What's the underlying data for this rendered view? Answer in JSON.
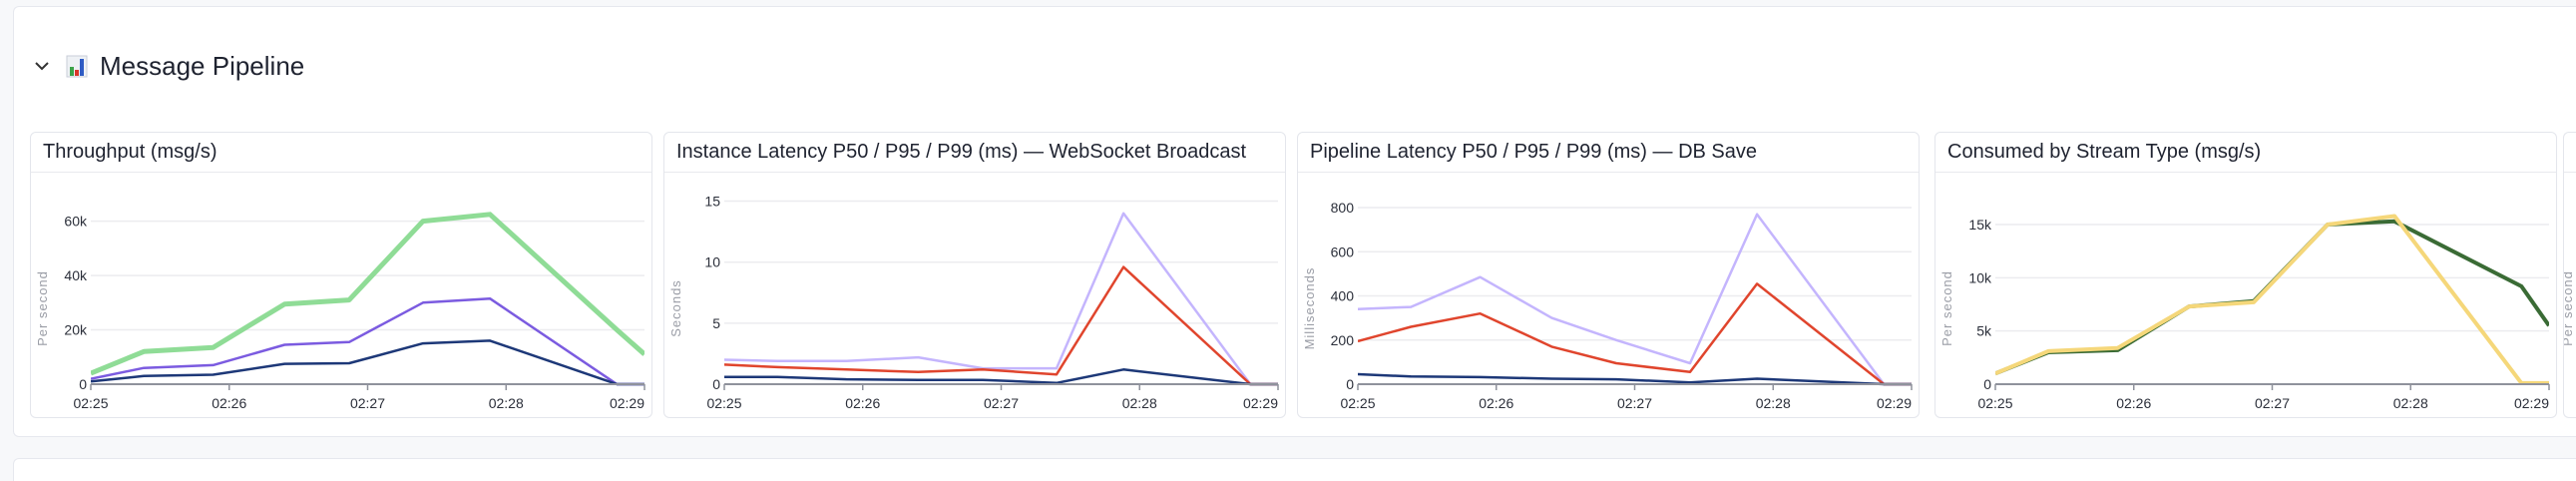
{
  "section": {
    "title": "Message Pipeline",
    "icon": "bar-chart-icon",
    "chevron": "chevron-down-icon"
  },
  "panels": [
    {
      "title": "Throughput (msg/s)",
      "chart_data": {
        "type": "line",
        "ylabel": "Per second",
        "x": [
          "02:25:00",
          "02:25:23",
          "02:25:53",
          "02:26:24",
          "02:26:52",
          "02:27:24",
          "02:27:53",
          "02:28:48",
          "02:29:00"
        ],
        "xticks": [
          "02:25",
          "02:26",
          "02:27",
          "02:28",
          "02:29"
        ],
        "xlim": [
          "02:25:00",
          "02:29:00"
        ],
        "yticks": [
          0,
          20000,
          40000,
          60000
        ],
        "ytick_labels": [
          "0",
          "20k",
          "40k",
          "60k"
        ],
        "ylim": [
          0,
          70500
        ],
        "series": [
          {
            "color": "#8fdc96",
            "width": 5,
            "values": [
              4000,
              12000,
              13500,
              29500,
              31000,
              60000,
              62500,
              20000,
              11000
            ]
          },
          {
            "color": "#7b5be0",
            "width": 2.5,
            "values": [
              2000,
              6000,
              7000,
              14500,
              15500,
              30000,
              31500,
              0,
              0
            ]
          },
          {
            "color": "#1d3878",
            "width": 2.5,
            "values": [
              1000,
              3000,
              3500,
              7500,
              7700,
              15000,
              16000,
              0,
              0
            ]
          }
        ]
      }
    },
    {
      "title": "Instance Latency P50 / P95 / P99 (ms) — WebSocket Broadcast",
      "chart_data": {
        "type": "line",
        "ylabel": "Seconds",
        "x": [
          "02:25:00",
          "02:25:23",
          "02:25:53",
          "02:26:24",
          "02:26:52",
          "02:27:24",
          "02:27:53",
          "02:28:48",
          "02:29:00"
        ],
        "xticks": [
          "02:25",
          "02:26",
          "02:27",
          "02:28",
          "02:29"
        ],
        "xlim": [
          "02:25:00",
          "02:29:00"
        ],
        "yticks": [
          0,
          5,
          10,
          15
        ],
        "ytick_labels": [
          "0",
          "5",
          "10",
          "15"
        ],
        "ylim": [
          0,
          15.7
        ],
        "series": [
          {
            "color": "#c4b5fd",
            "width": 2.5,
            "values": [
              2.0,
              1.9,
              1.9,
              2.2,
              1.3,
              1.3,
              14,
              0,
              0
            ]
          },
          {
            "color": "#e0452d",
            "width": 2.5,
            "values": [
              1.6,
              1.4,
              1.2,
              1.0,
              1.2,
              0.8,
              9.6,
              0,
              0
            ]
          },
          {
            "color": "#1d3878",
            "width": 2.5,
            "values": [
              0.6,
              0.6,
              0.4,
              0.35,
              0.35,
              0.1,
              1.2,
              0,
              0
            ]
          }
        ]
      }
    },
    {
      "title": "Pipeline Latency P50 / P95 / P99 (ms) — DB Save",
      "chart_data": {
        "type": "line",
        "ylabel": "Milliseconds",
        "x": [
          "02:25:00",
          "02:25:23",
          "02:25:53",
          "02:26:24",
          "02:26:52",
          "02:27:24",
          "02:27:53",
          "02:28:48",
          "02:29:00"
        ],
        "xticks": [
          "02:25",
          "02:26",
          "02:27",
          "02:28",
          "02:29"
        ],
        "xlim": [
          "02:25:00",
          "02:29:00"
        ],
        "yticks": [
          0,
          200,
          400,
          600,
          800
        ],
        "ytick_labels": [
          "0",
          "200",
          "400",
          "600",
          "800"
        ],
        "ylim": [
          0,
          868
        ],
        "series": [
          {
            "color": "#c4b5fd",
            "width": 2.5,
            "values": [
              340,
              350,
              485,
              300,
              200,
              95,
              770,
              0,
              0
            ]
          },
          {
            "color": "#e0452d",
            "width": 2.5,
            "values": [
              195,
              260,
              320,
              170,
              95,
              55,
              455,
              0,
              0
            ]
          },
          {
            "color": "#1d3878",
            "width": 2.5,
            "values": [
              45,
              35,
              32,
              25,
              22,
              8,
              25,
              0,
              0
            ]
          }
        ]
      }
    },
    {
      "title": "Consumed by Stream Type (msg/s)",
      "chart_data": {
        "type": "line",
        "ylabel": "Per second",
        "x": [
          "02:25:00",
          "02:25:23",
          "02:25:53",
          "02:26:24",
          "02:26:52",
          "02:27:24",
          "02:27:53",
          "02:28:48",
          "02:29:00"
        ],
        "xticks": [
          "02:25",
          "02:26",
          "02:27",
          "02:28",
          "02:29"
        ],
        "xlim": [
          "02:25:00",
          "02:29:00"
        ],
        "yticks": [
          0,
          5000,
          10000,
          15000
        ],
        "ytick_labels": [
          "0",
          "5k",
          "10k",
          "15k"
        ],
        "ylim": [
          0,
          18000
        ],
        "series": [
          {
            "color": "#3a6b35",
            "width": 4,
            "values": [
              1000,
              3000,
              3200,
              7300,
              7800,
              15000,
              15300,
              9200,
              5500
            ]
          },
          {
            "color": "#f5d77a",
            "width": 4,
            "values": [
              1000,
              3100,
              3400,
              7300,
              7700,
              15000,
              15800,
              100,
              100
            ]
          }
        ]
      }
    },
    {
      "title": "",
      "chart_data": {
        "type": "line",
        "ylabel": "Per second"
      }
    }
  ]
}
